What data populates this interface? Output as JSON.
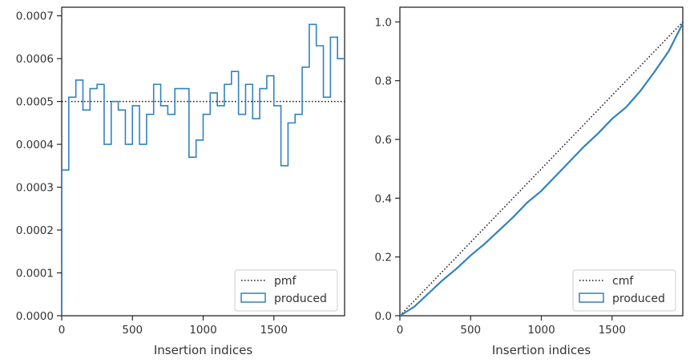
{
  "chart_data": [
    {
      "type": "line",
      "xlabel": "Insertion indices",
      "ylabel": "",
      "xlim": [
        0,
        2000
      ],
      "ylim": [
        0,
        0.00072
      ],
      "xticks": [
        0,
        500,
        1000,
        1500
      ],
      "xtick_labels": [
        "0",
        "500",
        "1000",
        "1500"
      ],
      "yticks": [
        0,
        0.0001,
        0.0002,
        0.0003,
        0.0004,
        0.0005,
        0.0006,
        0.0007
      ],
      "ytick_labels": [
        "0.0000",
        "0.0001",
        "0.0002",
        "0.0003",
        "0.0004",
        "0.0005",
        "0.0006",
        "0.0007"
      ],
      "grid": false,
      "legend_position": "bottom-right",
      "series": [
        {
          "name": "pmf",
          "style": "dotted",
          "color": "#111111",
          "x": [
            0,
            2000
          ],
          "y": [
            0.0005,
            0.0005
          ]
        },
        {
          "name": "produced",
          "style": "step-histogram",
          "color": "#3182bd",
          "bin_width": 50,
          "bin_starts": [
            0,
            50,
            100,
            150,
            200,
            250,
            300,
            350,
            400,
            450,
            500,
            550,
            600,
            650,
            700,
            750,
            800,
            850,
            900,
            950,
            1000,
            1050,
            1100,
            1150,
            1200,
            1250,
            1300,
            1350,
            1400,
            1450,
            1500,
            1550,
            1600,
            1650,
            1700,
            1750,
            1800,
            1850,
            1900,
            1950
          ],
          "values": [
            0.00034,
            0.00051,
            0.00055,
            0.00048,
            0.00053,
            0.00054,
            0.0004,
            0.0005,
            0.00048,
            0.0004,
            0.00049,
            0.0004,
            0.00047,
            0.00054,
            0.00049,
            0.00047,
            0.00053,
            0.00053,
            0.00037,
            0.00041,
            0.00047,
            0.00052,
            0.00049,
            0.00054,
            0.00057,
            0.00047,
            0.00054,
            0.00046,
            0.00053,
            0.00056,
            0.00049,
            0.00035,
            0.00045,
            0.00047,
            0.00058,
            0.00068,
            0.00063,
            0.00051,
            0.00065,
            0.0006
          ]
        }
      ]
    },
    {
      "type": "line",
      "xlabel": "Insertion indices",
      "ylabel": "",
      "xlim": [
        0,
        2000
      ],
      "ylim": [
        0,
        1.05
      ],
      "xticks": [
        0,
        500,
        1000,
        1500
      ],
      "xtick_labels": [
        "0",
        "500",
        "1000",
        "1500"
      ],
      "yticks": [
        0,
        0.2,
        0.4,
        0.6,
        0.8,
        1.0
      ],
      "ytick_labels": [
        "0.0",
        "0.2",
        "0.4",
        "0.6",
        "0.8",
        "1.0"
      ],
      "grid": false,
      "legend_position": "bottom-right",
      "series": [
        {
          "name": "cmf",
          "style": "dotted",
          "color": "#111111",
          "x": [
            0,
            2000
          ],
          "y": [
            0.0,
            1.0
          ]
        },
        {
          "name": "produced",
          "style": "solid",
          "color": "#3182bd",
          "x": [
            0,
            100,
            200,
            300,
            400,
            500,
            600,
            700,
            800,
            900,
            1000,
            1100,
            1200,
            1300,
            1400,
            1500,
            1600,
            1700,
            1800,
            1900,
            2000
          ],
          "y": [
            0.0,
            0.03,
            0.075,
            0.12,
            0.16,
            0.205,
            0.245,
            0.29,
            0.335,
            0.385,
            0.425,
            0.475,
            0.525,
            0.575,
            0.62,
            0.67,
            0.71,
            0.765,
            0.83,
            0.9,
            0.995
          ]
        }
      ]
    }
  ]
}
